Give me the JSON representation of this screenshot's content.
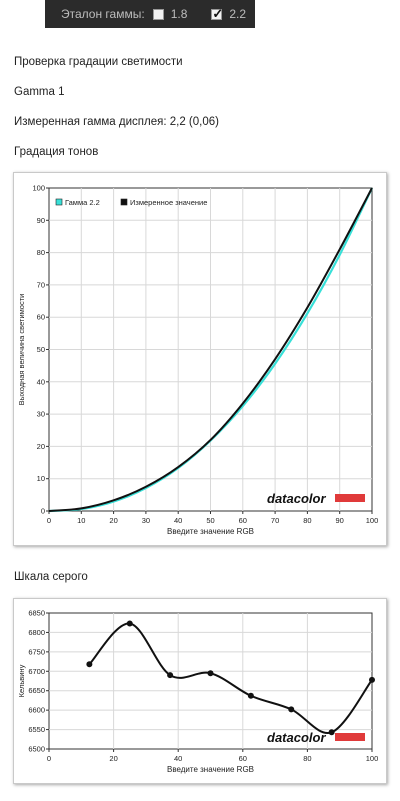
{
  "header": {
    "gamma_label": "Эталон гаммы:",
    "options": [
      {
        "label": "1.8",
        "checked": false
      },
      {
        "label": "2.2",
        "checked": true
      }
    ]
  },
  "texts": {
    "section_title": "Проверка градации светимости",
    "profile_name": "Gamma 1",
    "measured_gamma": "Измеренная гамма дисплея: 2,2 (0,06)",
    "tone_title": "Градация тонов",
    "gray_title": "Шкала серого"
  },
  "chart_data": [
    {
      "type": "line",
      "xlabel": "Введите значение RGB",
      "ylabel": "Выходная величина светимости",
      "xlim": [
        0,
        100
      ],
      "ylim": [
        0,
        100
      ],
      "xticks": [
        "0",
        "10",
        "20",
        "30",
        "40",
        "50",
        "60",
        "70",
        "80",
        "90",
        "100"
      ],
      "yticks": [
        "0",
        "10",
        "20",
        "30",
        "40",
        "50",
        "60",
        "70",
        "80",
        "90",
        "100"
      ],
      "grid": true,
      "legend": "top-left",
      "logo": "datacolor",
      "colors": {
        "reference": "#38e0d8",
        "measured": "#111111",
        "logo_bar": "#e03a3a"
      },
      "series": [
        {
          "name": "Гамма 2.2",
          "color": "#38e0d8",
          "x": [
            0,
            10,
            20,
            30,
            40,
            50,
            60,
            70,
            80,
            90,
            100
          ],
          "y": [
            0,
            0.6,
            2.9,
            7.1,
            13.3,
            21.8,
            32.5,
            45.6,
            61.2,
            79.3,
            100
          ]
        },
        {
          "name": "Измеренное значение",
          "color": "#111111",
          "x": [
            0,
            10,
            20,
            30,
            40,
            50,
            60,
            70,
            80,
            90,
            100
          ],
          "y": [
            0,
            0.8,
            3.3,
            7.5,
            13.6,
            22.0,
            33.3,
            47.0,
            63.0,
            81.0,
            100
          ]
        }
      ]
    },
    {
      "type": "line",
      "xlabel": "Введите значение RGB",
      "ylabel": "Кельвину",
      "xlim": [
        0,
        100
      ],
      "ylim": [
        6500,
        6850
      ],
      "xticks": [
        "0",
        "20",
        "40",
        "60",
        "80",
        "100"
      ],
      "yticks": [
        "6500",
        "6550",
        "6600",
        "6650",
        "6700",
        "6750",
        "6800",
        "6850"
      ],
      "grid": true,
      "logo": "datacolor",
      "colors": {
        "line": "#111111",
        "logo_bar": "#e03a3a"
      },
      "series": [
        {
          "color": "#111111",
          "x": [
            12.5,
            25,
            37.5,
            50,
            62.5,
            75,
            87.5,
            100
          ],
          "y": [
            6718,
            6823,
            6690,
            6695,
            6637,
            6602,
            6543,
            6678
          ]
        }
      ]
    }
  ]
}
